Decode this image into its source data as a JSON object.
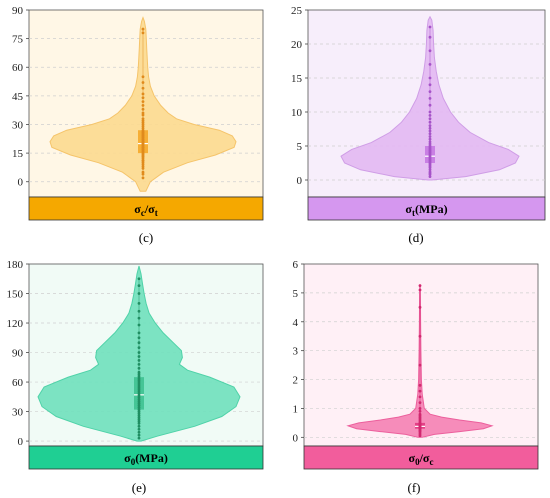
{
  "panels": [
    {
      "id": "c",
      "caption": "(c)",
      "label_main": "σ",
      "label_sub": "c",
      "label_mid": "/σ",
      "label_sub2": "t",
      "label_tail": "",
      "colors": {
        "fill": "#fcd98f",
        "stroke": "#f5c46a",
        "background": "#fff7e6",
        "bar": "#f5a800",
        "box": "#f5a623",
        "points": "#e08a1c"
      },
      "chart_data": {
        "type": "violin",
        "ylim": [
          -8,
          90
        ],
        "yticks": [
          0,
          15,
          30,
          45,
          60,
          75,
          90
        ],
        "xlabel": "σc/σt",
        "box": {
          "q1": 15,
          "median": 20,
          "q3": 27
        },
        "profile": [
          [
            -5,
            0.03
          ],
          [
            0,
            0.08
          ],
          [
            5,
            0.22
          ],
          [
            10,
            0.48
          ],
          [
            14,
            0.78
          ],
          [
            18,
            0.98
          ],
          [
            21,
            1.0
          ],
          [
            24,
            0.96
          ],
          [
            27,
            0.82
          ],
          [
            30,
            0.55
          ],
          [
            33,
            0.36
          ],
          [
            36,
            0.27
          ],
          [
            40,
            0.19
          ],
          [
            45,
            0.12
          ],
          [
            50,
            0.08
          ],
          [
            55,
            0.06
          ],
          [
            60,
            0.05
          ],
          [
            65,
            0.045
          ],
          [
            70,
            0.04
          ],
          [
            75,
            0.035
          ],
          [
            80,
            0.03
          ],
          [
            84,
            0.015
          ],
          [
            86,
            0
          ]
        ],
        "points": [
          2,
          4,
          5,
          7,
          8,
          9,
          10,
          11,
          11,
          12,
          13,
          13,
          14,
          14,
          15,
          15,
          16,
          16,
          17,
          17,
          18,
          18,
          18,
          19,
          19,
          20,
          20,
          20,
          21,
          21,
          21,
          22,
          22,
          23,
          23,
          24,
          24,
          25,
          25,
          26,
          26,
          27,
          28,
          29,
          30,
          31,
          32,
          33,
          35,
          36,
          38,
          40,
          42,
          44,
          46,
          49,
          52,
          55,
          78,
          80
        ]
      }
    },
    {
      "id": "d",
      "caption": "(d)",
      "label_main": "σ",
      "label_sub": "t",
      "label_mid": "(MPa)",
      "label_sub2": "",
      "label_tail": "",
      "colors": {
        "fill": "#e2b8f2",
        "stroke": "#cf9de6",
        "background": "#f7eefb",
        "bar": "#d597ef",
        "box": "#c476e0",
        "points": "#a653c8"
      },
      "chart_data": {
        "type": "violin",
        "ylim": [
          -2.5,
          25
        ],
        "yticks": [
          0,
          5,
          10,
          15,
          20,
          25
        ],
        "xlabel": "σt(MPa)",
        "box": {
          "q1": 2.5,
          "median": 3.5,
          "q3": 5
        },
        "profile": [
          [
            0,
            0.02
          ],
          [
            0.5,
            0.4
          ],
          [
            1.5,
            0.78
          ],
          [
            2.5,
            0.96
          ],
          [
            3.5,
            1.0
          ],
          [
            4.5,
            0.88
          ],
          [
            5.5,
            0.66
          ],
          [
            7,
            0.45
          ],
          [
            8.5,
            0.32
          ],
          [
            10,
            0.23
          ],
          [
            12,
            0.15
          ],
          [
            14,
            0.1
          ],
          [
            16,
            0.07
          ],
          [
            18,
            0.05
          ],
          [
            20,
            0.04
          ],
          [
            22,
            0.035
          ],
          [
            23.5,
            0.02
          ],
          [
            24,
            0
          ]
        ],
        "points": [
          0.5,
          0.8,
          1,
          1.2,
          1.5,
          1.8,
          2,
          2.2,
          2.4,
          2.6,
          2.8,
          3,
          3.2,
          3.4,
          3.6,
          3.8,
          4,
          4.2,
          4.4,
          4.6,
          4.8,
          5,
          5.3,
          5.6,
          6,
          6.4,
          6.8,
          7.2,
          7.6,
          8,
          8.5,
          9,
          9.5,
          10,
          11,
          12,
          13,
          14,
          15,
          17,
          19,
          21,
          22.5
        ]
      }
    },
    {
      "id": "e",
      "caption": "(e)",
      "label_main": "σ",
      "label_sub": "0",
      "label_mid": "(MPa)",
      "label_sub2": "",
      "label_tail": "",
      "colors": {
        "fill": "#6fe0bc",
        "stroke": "#4fd2a8",
        "background": "#f1fbf6",
        "bar": "#1fcf93",
        "box": "#3cbf8e",
        "points": "#1f8e62"
      },
      "chart_data": {
        "type": "violin",
        "ylim": [
          -5,
          180
        ],
        "yticks": [
          0,
          30,
          60,
          90,
          120,
          150,
          180
        ],
        "xlabel": "σ0(MPa)",
        "box": {
          "q1": 32,
          "median": 47,
          "q3": 65
        },
        "profile": [
          [
            0,
            0.02
          ],
          [
            5,
            0.18
          ],
          [
            15,
            0.55
          ],
          [
            25,
            0.82
          ],
          [
            35,
            0.96
          ],
          [
            45,
            1.0
          ],
          [
            55,
            0.94
          ],
          [
            65,
            0.7
          ],
          [
            72,
            0.48
          ],
          [
            78,
            0.4
          ],
          [
            85,
            0.43
          ],
          [
            92,
            0.42
          ],
          [
            100,
            0.34
          ],
          [
            110,
            0.24
          ],
          [
            120,
            0.16
          ],
          [
            130,
            0.1
          ],
          [
            140,
            0.07
          ],
          [
            150,
            0.05
          ],
          [
            160,
            0.035
          ],
          [
            170,
            0.02
          ],
          [
            178,
            0
          ]
        ],
        "points": [
          3,
          6,
          9,
          12,
          15,
          18,
          20,
          22,
          24,
          26,
          28,
          30,
          32,
          34,
          36,
          38,
          40,
          42,
          44,
          46,
          48,
          50,
          52,
          54,
          56,
          58,
          60,
          62,
          64,
          66,
          68,
          70,
          74,
          78,
          82,
          86,
          90,
          95,
          100,
          105,
          110,
          118,
          125,
          132,
          140,
          150,
          158,
          165
        ]
      }
    },
    {
      "id": "f",
      "caption": "(f)",
      "label_main": "σ",
      "label_sub": "0",
      "label_mid": "/σ",
      "label_sub2": "c",
      "label_tail": "",
      "colors": {
        "fill": "#f581b4",
        "stroke": "#ec5f9c",
        "background": "#fff0f6",
        "bar": "#f25d9c",
        "box": "#e0337e",
        "points": "#d1286f"
      },
      "chart_data": {
        "type": "violin",
        "ylim": [
          -0.3,
          6
        ],
        "yticks": [
          0,
          1,
          2,
          3,
          4,
          5,
          6
        ],
        "xlabel": "σ0/σc",
        "box": {
          "q1": 0.3,
          "median": 0.38,
          "q3": 0.5
        },
        "profile": [
          [
            0,
            0.03
          ],
          [
            0.1,
            0.2
          ],
          [
            0.2,
            0.55
          ],
          [
            0.3,
            0.88
          ],
          [
            0.4,
            1.0
          ],
          [
            0.5,
            0.85
          ],
          [
            0.6,
            0.55
          ],
          [
            0.7,
            0.3
          ],
          [
            0.8,
            0.14
          ],
          [
            1,
            0.06
          ],
          [
            1.5,
            0.03
          ],
          [
            2,
            0.02
          ],
          [
            3,
            0.012
          ],
          [
            4,
            0.008
          ],
          [
            5,
            0.006
          ],
          [
            5.3,
            0
          ]
        ],
        "points": [
          0.05,
          0.1,
          0.15,
          0.2,
          0.22,
          0.25,
          0.28,
          0.3,
          0.32,
          0.34,
          0.36,
          0.38,
          0.4,
          0.42,
          0.44,
          0.46,
          0.48,
          0.5,
          0.55,
          0.6,
          0.65,
          0.7,
          0.75,
          0.8,
          0.9,
          1.0,
          1.2,
          1.4,
          1.6,
          1.8,
          2.5,
          3.5,
          4.5,
          5.1,
          5.25
        ]
      }
    }
  ]
}
